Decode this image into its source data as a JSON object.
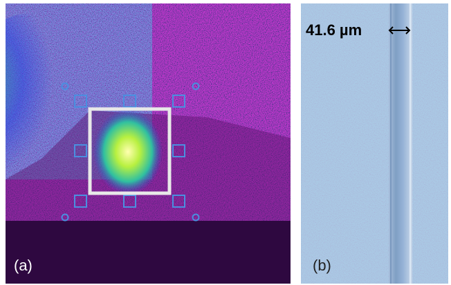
{
  "panels": [
    {
      "label": "(a)"
    },
    {
      "label": "(b)",
      "annotation": "41.6 µm"
    }
  ]
}
